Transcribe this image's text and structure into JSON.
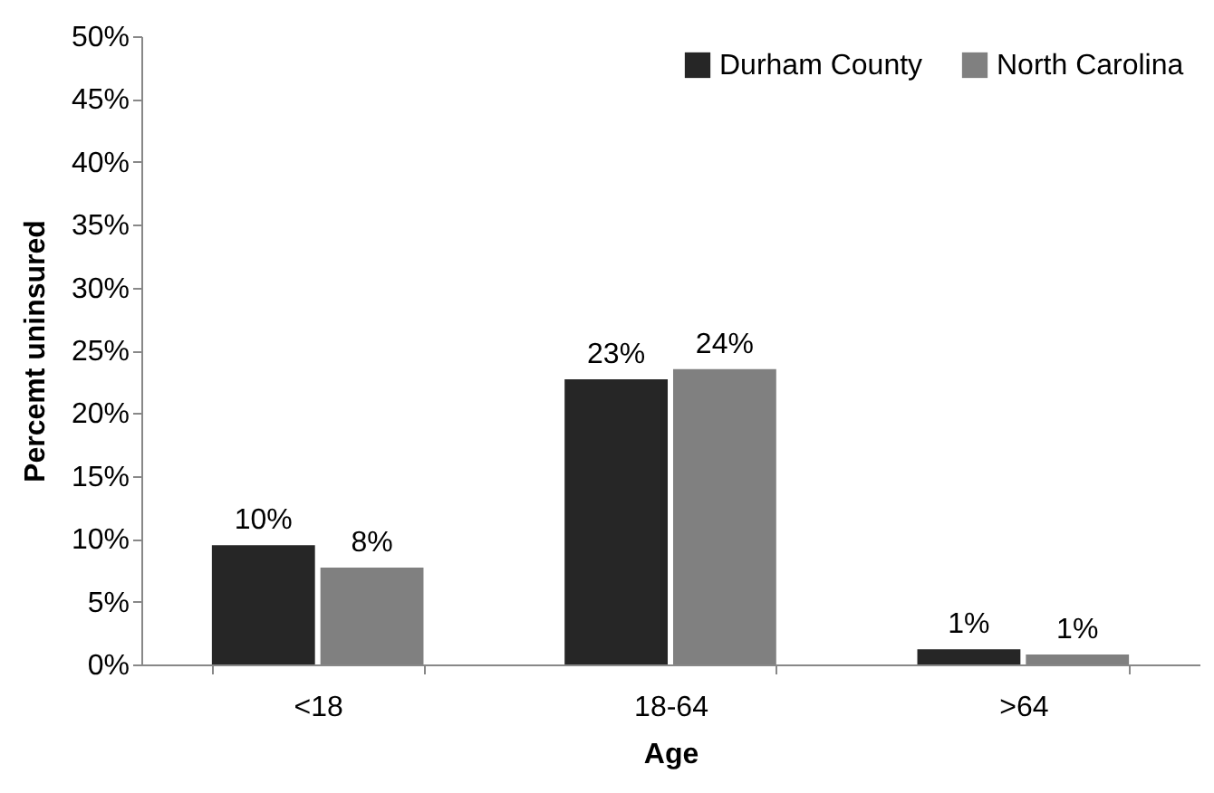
{
  "chart_data": {
    "type": "bar",
    "xlabel": "Age",
    "ylabel": "Percemt uninsured",
    "categories": [
      "<18",
      "18-64",
      ">64"
    ],
    "series": [
      {
        "name": "Durham County",
        "color": "#262626",
        "values": [
          9.5,
          22.7,
          1.2
        ],
        "value_labels": [
          "10%",
          "23%",
          "1%"
        ]
      },
      {
        "name": "North Carolina",
        "color": "#808080",
        "values": [
          7.7,
          23.5,
          0.8
        ],
        "value_labels": [
          "8%",
          "24%",
          "1%"
        ]
      }
    ],
    "ylim": [
      0,
      50
    ],
    "yticks": [
      {
        "value": 0,
        "label": "0%"
      },
      {
        "value": 5,
        "label": "5%"
      },
      {
        "value": 10,
        "label": "10%"
      },
      {
        "value": 15,
        "label": "15%"
      },
      {
        "value": 20,
        "label": "20%"
      },
      {
        "value": 25,
        "label": "25%"
      },
      {
        "value": 30,
        "label": "30%"
      },
      {
        "value": 35,
        "label": "35%"
      },
      {
        "value": 40,
        "label": "40%"
      },
      {
        "value": 45,
        "label": "45%"
      },
      {
        "value": 50,
        "label": "50%"
      }
    ],
    "grid": false,
    "legend": "top right"
  }
}
